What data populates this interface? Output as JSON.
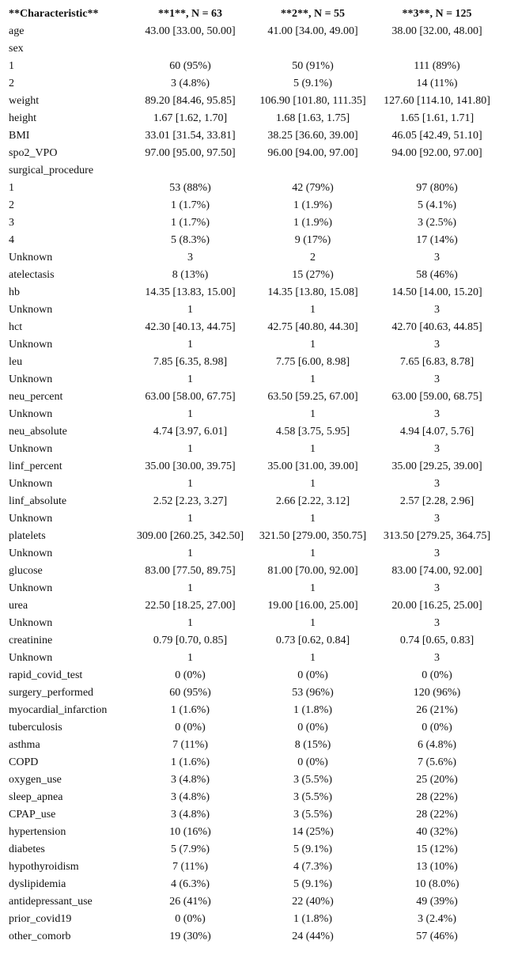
{
  "header": [
    "**Characteristic**",
    "**1**, N = 63",
    "**2**, N = 55",
    "**3**, N = 125"
  ],
  "rows": [
    [
      "age",
      "43.00 [33.00, 50.00]",
      "41.00 [34.00, 49.00]",
      "38.00 [32.00, 48.00]"
    ],
    [
      "sex",
      "",
      "",
      ""
    ],
    [
      "1",
      "60 (95%)",
      "50 (91%)",
      "111 (89%)"
    ],
    [
      "2",
      "3 (4.8%)",
      "5 (9.1%)",
      "14 (11%)"
    ],
    [
      "weight",
      "89.20 [84.46, 95.85]",
      "106.90 [101.80, 111.35]",
      "127.60 [114.10, 141.80]"
    ],
    [
      "height",
      "1.67 [1.62, 1.70]",
      "1.68 [1.63, 1.75]",
      "1.65 [1.61, 1.71]"
    ],
    [
      "BMI",
      "33.01 [31.54, 33.81]",
      "38.25 [36.60, 39.00]",
      "46.05 [42.49, 51.10]"
    ],
    [
      "spo2_VPO",
      "97.00 [95.00, 97.50]",
      "96.00 [94.00, 97.00]",
      "94.00 [92.00, 97.00]"
    ],
    [
      "surgical_procedure",
      "",
      "",
      ""
    ],
    [
      "1",
      "53 (88%)",
      "42 (79%)",
      "97 (80%)"
    ],
    [
      "2",
      "1 (1.7%)",
      "1 (1.9%)",
      "5 (4.1%)"
    ],
    [
      "3",
      "1 (1.7%)",
      "1 (1.9%)",
      "3 (2.5%)"
    ],
    [
      "4",
      "5 (8.3%)",
      "9 (17%)",
      "17 (14%)"
    ],
    [
      "Unknown",
      "3",
      "2",
      "3"
    ],
    [
      "atelectasis",
      "8 (13%)",
      "15 (27%)",
      "58 (46%)"
    ],
    [
      "hb",
      "14.35 [13.83, 15.00]",
      "14.35 [13.80, 15.08]",
      "14.50 [14.00, 15.20]"
    ],
    [
      "Unknown",
      "1",
      "1",
      "3"
    ],
    [
      "hct",
      "42.30 [40.13, 44.75]",
      "42.75 [40.80, 44.30]",
      "42.70 [40.63, 44.85]"
    ],
    [
      "Unknown",
      "1",
      "1",
      "3"
    ],
    [
      "leu",
      "7.85 [6.35, 8.98]",
      "7.75 [6.00, 8.98]",
      "7.65 [6.83, 8.78]"
    ],
    [
      "Unknown",
      "1",
      "1",
      "3"
    ],
    [
      "neu_percent",
      "63.00 [58.00, 67.75]",
      "63.50 [59.25, 67.00]",
      "63.00 [59.00, 68.75]"
    ],
    [
      "Unknown",
      "1",
      "1",
      "3"
    ],
    [
      "neu_absolute",
      "4.74 [3.97, 6.01]",
      "4.58 [3.75, 5.95]",
      "4.94 [4.07, 5.76]"
    ],
    [
      "Unknown",
      "1",
      "1",
      "3"
    ],
    [
      "linf_percent",
      "35.00 [30.00, 39.75]",
      "35.00 [31.00, 39.00]",
      "35.00 [29.25, 39.00]"
    ],
    [
      "Unknown",
      "1",
      "1",
      "3"
    ],
    [
      "linf_absolute",
      "2.52 [2.23, 3.27]",
      "2.66 [2.22, 3.12]",
      "2.57 [2.28, 2.96]"
    ],
    [
      "Unknown",
      "1",
      "1",
      "3"
    ],
    [
      "platelets",
      "309.00 [260.25, 342.50]",
      "321.50 [279.00, 350.75]",
      "313.50 [279.25, 364.75]"
    ],
    [
      "Unknown",
      "1",
      "1",
      "3"
    ],
    [
      "glucose",
      "83.00 [77.50, 89.75]",
      "81.00 [70.00, 92.00]",
      "83.00 [74.00, 92.00]"
    ],
    [
      "Unknown",
      "1",
      "1",
      "3"
    ],
    [
      "urea",
      "22.50 [18.25, 27.00]",
      "19.00 [16.00, 25.00]",
      "20.00 [16.25, 25.00]"
    ],
    [
      "Unknown",
      "1",
      "1",
      "3"
    ],
    [
      "creatinine",
      "0.79 [0.70, 0.85]",
      "0.73 [0.62, 0.84]",
      "0.74 [0.65, 0.83]"
    ],
    [
      "Unknown",
      "1",
      "1",
      "3"
    ],
    [
      "rapid_covid_test",
      "0 (0%)",
      "0 (0%)",
      "0 (0%)"
    ],
    [
      "surgery_performed",
      "60 (95%)",
      "53 (96%)",
      "120 (96%)"
    ],
    [
      "myocardial_infarction",
      "1 (1.6%)",
      "1 (1.8%)",
      "26 (21%)"
    ],
    [
      "tuberculosis",
      "0 (0%)",
      "0 (0%)",
      "0 (0%)"
    ],
    [
      "asthma",
      "7 (11%)",
      "8 (15%)",
      "6 (4.8%)"
    ],
    [
      "COPD",
      "1 (1.6%)",
      "0 (0%)",
      "7 (5.6%)"
    ],
    [
      "oxygen_use",
      "3 (4.8%)",
      "3 (5.5%)",
      "25 (20%)"
    ],
    [
      "sleep_apnea",
      "3 (4.8%)",
      "3 (5.5%)",
      "28 (22%)"
    ],
    [
      "CPAP_use",
      "3 (4.8%)",
      "3 (5.5%)",
      "28 (22%)"
    ],
    [
      "hypertension",
      "10 (16%)",
      "14 (25%)",
      "40 (32%)"
    ],
    [
      "diabetes",
      "5 (7.9%)",
      "5 (9.1%)",
      "15 (12%)"
    ],
    [
      "hypothyroidism",
      "7 (11%)",
      "4 (7.3%)",
      "13 (10%)"
    ],
    [
      "dyslipidemia",
      "4 (6.3%)",
      "5 (9.1%)",
      "10 (8.0%)"
    ],
    [
      "antidepressant_use",
      "26 (41%)",
      "22 (40%)",
      "49 (39%)"
    ],
    [
      "prior_covid19",
      "0 (0%)",
      "1 (1.8%)",
      "3 (2.4%)"
    ],
    [
      "other_comorb",
      "19 (30%)",
      "24 (44%)",
      "57 (46%)"
    ]
  ]
}
